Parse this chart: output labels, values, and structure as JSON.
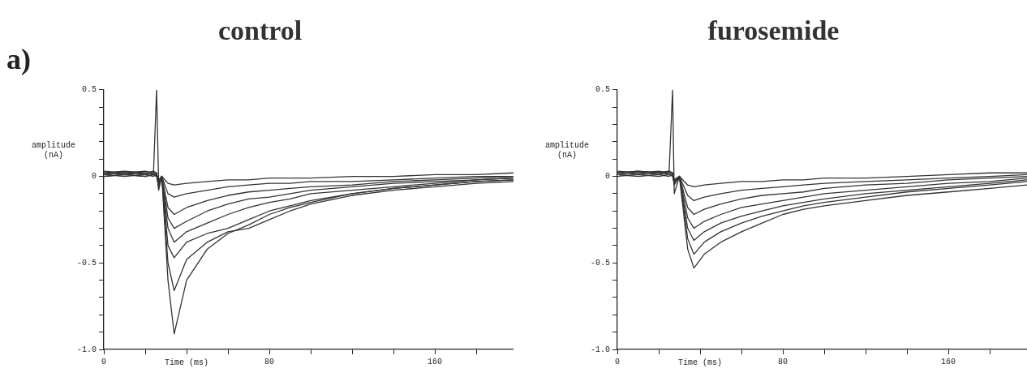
{
  "chart_data": [
    {
      "type": "line",
      "title": "control",
      "xlabel": "Time (ms)",
      "ylabel": "amplitude (nA)",
      "annotations": [
        "a)"
      ],
      "legend": false,
      "grid": false,
      "marker": "none",
      "line_style": "solid",
      "xlim": [
        0,
        198
      ],
      "ylim": [
        -1.0,
        0.5
      ],
      "xticks": [
        0,
        {
          "value": 20,
          "label": null
        },
        {
          "value": 40,
          "label": null
        },
        {
          "value": 60,
          "label": null
        },
        80,
        {
          "value": 100,
          "label": null
        },
        {
          "value": 120,
          "label": null
        },
        {
          "value": 140,
          "label": null
        },
        160,
        {
          "value": 180,
          "label": null
        }
      ],
      "yticks": [
        {
          "value": -1.0,
          "label": "-1.0"
        },
        {
          "value": -0.9,
          "label": null
        },
        {
          "value": -0.8,
          "label": null
        },
        {
          "value": -0.7,
          "label": null
        },
        {
          "value": -0.6,
          "label": null
        },
        -0.5,
        {
          "value": -0.4,
          "label": null
        },
        {
          "value": -0.3,
          "label": null
        },
        {
          "value": -0.2,
          "label": null
        },
        {
          "value": -0.1,
          "label": null
        },
        0,
        {
          "value": 0.1,
          "label": null
        },
        {
          "value": 0.2,
          "label": null
        },
        {
          "value": 0.3,
          "label": null
        },
        {
          "value": 0.4,
          "label": null
        },
        0.5
      ],
      "x": [
        0,
        10,
        20,
        24,
        25.5,
        26.5,
        28,
        31,
        34,
        40,
        50,
        60,
        70,
        80,
        90,
        100,
        120,
        140,
        160,
        180,
        198
      ],
      "series": [
        {
          "color": "#333333",
          "values": [
            0.03,
            0.02,
            0.03,
            0.02,
            0.5,
            -0.05,
            0,
            -0.6,
            -0.91,
            -0.6,
            -0.42,
            -0.33,
            -0.28,
            -0.22,
            -0.18,
            -0.15,
            -0.1,
            -0.07,
            -0.05,
            -0.03,
            -0.02
          ]
        },
        {
          "color": "#333333",
          "values": [
            0.02,
            0.03,
            0.02,
            0.03,
            0.02,
            -0.08,
            0,
            -0.5,
            -0.66,
            -0.48,
            -0.38,
            -0.32,
            -0.3,
            -0.25,
            -0.2,
            -0.16,
            -0.11,
            -0.08,
            -0.06,
            -0.04,
            -0.03
          ]
        },
        {
          "color": "#333333",
          "values": [
            0.01,
            0.02,
            0.01,
            0.02,
            0.01,
            -0.06,
            0,
            -0.4,
            -0.47,
            -0.38,
            -0.33,
            -0.3,
            -0.25,
            -0.2,
            -0.17,
            -0.14,
            -0.1,
            -0.07,
            -0.05,
            -0.03,
            -0.02
          ]
        },
        {
          "color": "#333333",
          "values": [
            0,
            0.01,
            0,
            0.01,
            0,
            -0.05,
            -0.01,
            -0.3,
            -0.38,
            -0.32,
            -0.27,
            -0.22,
            -0.18,
            -0.15,
            -0.13,
            -0.1,
            -0.08,
            -0.06,
            -0.04,
            -0.02,
            -0.01
          ]
        },
        {
          "color": "#333333",
          "values": [
            0.02,
            0.01,
            0.02,
            0.01,
            0.02,
            -0.04,
            0,
            -0.24,
            -0.3,
            -0.26,
            -0.2,
            -0.16,
            -0.13,
            -0.12,
            -0.1,
            -0.08,
            -0.06,
            -0.04,
            -0.03,
            -0.02,
            -0.01
          ]
        },
        {
          "color": "#333333",
          "values": [
            0.01,
            0,
            0.01,
            0,
            0.01,
            -0.03,
            0,
            -0.18,
            -0.22,
            -0.18,
            -0.14,
            -0.11,
            -0.09,
            -0.08,
            -0.07,
            -0.06,
            -0.05,
            -0.03,
            -0.02,
            -0.01,
            0
          ]
        },
        {
          "color": "#333333",
          "values": [
            0,
            0.01,
            0,
            0.01,
            0,
            -0.03,
            0,
            -0.1,
            -0.12,
            -0.1,
            -0.08,
            -0.06,
            -0.05,
            -0.04,
            -0.04,
            -0.03,
            -0.03,
            -0.02,
            -0.01,
            0,
            0
          ]
        },
        {
          "color": "#333333",
          "values": [
            0.01,
            0.02,
            0.01,
            0.02,
            0.01,
            -0.02,
            0,
            -0.04,
            -0.05,
            -0.04,
            -0.03,
            -0.02,
            -0.02,
            -0.01,
            -0.01,
            -0.01,
            0,
            0,
            0.01,
            0.01,
            0.02
          ]
        }
      ]
    },
    {
      "type": "line",
      "title": "furosemide",
      "xlabel": "Time (ms)",
      "ylabel": "amplitude (nA)",
      "legend": false,
      "grid": false,
      "marker": "none",
      "line_style": "solid",
      "xlim": [
        0,
        198
      ],
      "ylim": [
        -1.0,
        0.5
      ],
      "xticks": [
        0,
        {
          "value": 20,
          "label": null
        },
        {
          "value": 40,
          "label": null
        },
        {
          "value": 60,
          "label": null
        },
        80,
        {
          "value": 100,
          "label": null
        },
        {
          "value": 120,
          "label": null
        },
        {
          "value": 140,
          "label": null
        },
        160,
        {
          "value": 180,
          "label": null
        }
      ],
      "yticks": [
        {
          "value": -1.0,
          "label": "-1.0"
        },
        {
          "value": -0.9,
          "label": null
        },
        {
          "value": -0.8,
          "label": null
        },
        {
          "value": -0.7,
          "label": null
        },
        {
          "value": -0.6,
          "label": null
        },
        -0.5,
        {
          "value": -0.4,
          "label": null
        },
        {
          "value": -0.3,
          "label": null
        },
        {
          "value": -0.2,
          "label": null
        },
        {
          "value": -0.1,
          "label": null
        },
        0,
        {
          "value": 0.1,
          "label": null
        },
        {
          "value": 0.2,
          "label": null
        },
        {
          "value": 0.3,
          "label": null
        },
        {
          "value": 0.4,
          "label": null
        },
        0.5
      ],
      "x": [
        0,
        10,
        20,
        25,
        26.7,
        27.5,
        30,
        34,
        37,
        42,
        50,
        60,
        70,
        80,
        90,
        100,
        120,
        140,
        160,
        180,
        198
      ],
      "series": [
        {
          "color": "#333333",
          "values": [
            0.03,
            0.02,
            0.03,
            0.02,
            0.5,
            -0.1,
            0,
            -0.42,
            -0.53,
            -0.45,
            -0.38,
            -0.32,
            -0.27,
            -0.22,
            -0.19,
            -0.17,
            -0.14,
            -0.11,
            -0.09,
            -0.07,
            -0.05
          ]
        },
        {
          "color": "#333333",
          "values": [
            0.02,
            0.03,
            0.02,
            0.03,
            0.02,
            -0.05,
            0,
            -0.36,
            -0.45,
            -0.38,
            -0.32,
            -0.27,
            -0.23,
            -0.2,
            -0.17,
            -0.15,
            -0.12,
            -0.09,
            -0.07,
            -0.05,
            -0.03
          ]
        },
        {
          "color": "#333333",
          "values": [
            0.01,
            0.02,
            0.01,
            0.02,
            0.01,
            -0.04,
            0,
            -0.3,
            -0.37,
            -0.32,
            -0.27,
            -0.23,
            -0.2,
            -0.17,
            -0.15,
            -0.13,
            -0.1,
            -0.08,
            -0.06,
            -0.04,
            -0.02
          ]
        },
        {
          "color": "#333333",
          "values": [
            0,
            0.01,
            0,
            0.01,
            0,
            -0.04,
            0,
            -0.24,
            -0.3,
            -0.26,
            -0.22,
            -0.18,
            -0.16,
            -0.14,
            -0.12,
            -0.1,
            -0.08,
            -0.06,
            -0.04,
            -0.03,
            -0.01
          ]
        },
        {
          "color": "#333333",
          "values": [
            0.02,
            0.01,
            0.02,
            0.01,
            0.02,
            -0.03,
            0,
            -0.18,
            -0.22,
            -0.19,
            -0.16,
            -0.13,
            -0.11,
            -0.1,
            -0.09,
            -0.07,
            -0.05,
            -0.04,
            -0.02,
            -0.01,
            0
          ]
        },
        {
          "color": "#333333",
          "values": [
            0.01,
            0,
            0.01,
            0,
            0.01,
            -0.02,
            0,
            -0.11,
            -0.14,
            -0.12,
            -0.1,
            -0.08,
            -0.07,
            -0.06,
            -0.05,
            -0.04,
            -0.03,
            -0.02,
            -0.01,
            0,
            0.01
          ]
        },
        {
          "color": "#333333",
          "values": [
            0.02,
            0.03,
            0.02,
            0.03,
            0.02,
            -0.02,
            0,
            -0.05,
            -0.06,
            -0.05,
            -0.04,
            -0.03,
            -0.03,
            -0.02,
            -0.02,
            -0.01,
            -0.01,
            0,
            0.01,
            0.02,
            0.02
          ]
        }
      ]
    }
  ]
}
